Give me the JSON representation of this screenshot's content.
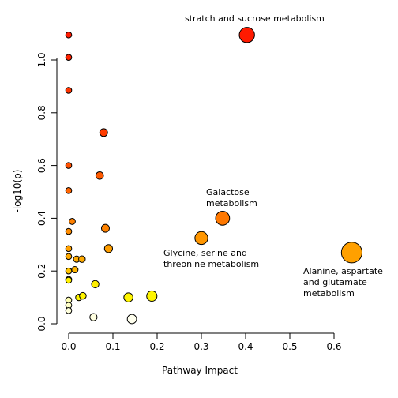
{
  "chart_data": {
    "type": "scatter",
    "title": "",
    "xlabel": "Pathway Impact",
    "ylabel": "-log10(p)",
    "xlim": [
      0,
      0.6
    ],
    "ylim": [
      0,
      1.1
    ],
    "xticks": [
      0.0,
      0.1,
      0.2,
      0.3,
      0.4,
      0.5,
      0.6
    ],
    "yticks": [
      0.0,
      0.2,
      0.4,
      0.6,
      0.8,
      1.0
    ],
    "xtick_labels": [
      "0.0",
      "0.1",
      "0.2",
      "0.3",
      "0.4",
      "0.5",
      "0.6"
    ],
    "ytick_labels": [
      "0.0",
      "0.2",
      "0.4",
      "0.6",
      "0.8",
      "1.0"
    ],
    "grid": false,
    "points": [
      {
        "x": 0.0,
        "y": 1.095,
        "color": "#FF1A00"
      },
      {
        "x": 0.0,
        "y": 1.01,
        "color": "#FF2200"
      },
      {
        "x": 0.0,
        "y": 0.885,
        "color": "#FF3300"
      },
      {
        "x": 0.0,
        "y": 0.6,
        "color": "#FF5000"
      },
      {
        "x": 0.0,
        "y": 0.505,
        "color": "#FF6400"
      },
      {
        "x": 0.0,
        "y": 0.35,
        "color": "#FF8C00"
      },
      {
        "x": 0.0,
        "y": 0.285,
        "color": "#FFA000"
      },
      {
        "x": 0.0,
        "y": 0.255,
        "color": "#FFAA00"
      },
      {
        "x": 0.0,
        "y": 0.2,
        "color": "#FFC400"
      },
      {
        "x": 0.0,
        "y": 0.168,
        "color": "#FFE600"
      },
      {
        "x": 0.0,
        "y": 0.165,
        "color": "#FFF000"
      },
      {
        "x": 0.0,
        "y": 0.09,
        "color": "#FFFFB4"
      },
      {
        "x": 0.0,
        "y": 0.07,
        "color": "#FFFFC8"
      },
      {
        "x": 0.0,
        "y": 0.05,
        "color": "#FFFFDC"
      },
      {
        "x": 0.008,
        "y": 0.388,
        "color": "#FF8000"
      },
      {
        "x": 0.014,
        "y": 0.205,
        "color": "#FFB400"
      },
      {
        "x": 0.018,
        "y": 0.245,
        "color": "#FFAA00"
      },
      {
        "x": 0.03,
        "y": 0.245,
        "color": "#FFAA00"
      },
      {
        "x": 0.023,
        "y": 0.1,
        "color": "#FFF500"
      },
      {
        "x": 0.032,
        "y": 0.106,
        "color": "#FFF500"
      },
      {
        "x": 0.056,
        "y": 0.025,
        "color": "#FFFFE0"
      },
      {
        "x": 0.06,
        "y": 0.15,
        "color": "#FFEE00"
      },
      {
        "x": 0.07,
        "y": 0.562,
        "color": "#FF5A00"
      },
      {
        "x": 0.079,
        "y": 0.725,
        "color": "#FF3C00"
      },
      {
        "x": 0.083,
        "y": 0.362,
        "color": "#FF8200"
      },
      {
        "x": 0.09,
        "y": 0.285,
        "color": "#FF9E00"
      },
      {
        "x": 0.135,
        "y": 0.1,
        "color": "#FFF500"
      },
      {
        "x": 0.143,
        "y": 0.018,
        "color": "#FFFFEE"
      },
      {
        "x": 0.188,
        "y": 0.105,
        "color": "#FFF500"
      },
      {
        "x": 0.3,
        "y": 0.325,
        "color": "#FF9600"
      },
      {
        "x": 0.348,
        "y": 0.4,
        "color": "#FF7800"
      },
      {
        "x": 0.403,
        "y": 1.095,
        "color": "#FF1A00"
      },
      {
        "x": 0.64,
        "y": 0.27,
        "color": "#FFA000"
      }
    ],
    "annotations": [
      {
        "lines": [
          "stratch and sucrose metabolism"
        ]
      },
      {
        "lines": [
          "Galactose",
          "metabolism"
        ]
      },
      {
        "lines": [
          "Glycine, serine and",
          "threonine metabolism"
        ]
      },
      {
        "lines": [
          "Alanine, aspartate",
          "and glutamate",
          "metabolism"
        ]
      }
    ]
  }
}
